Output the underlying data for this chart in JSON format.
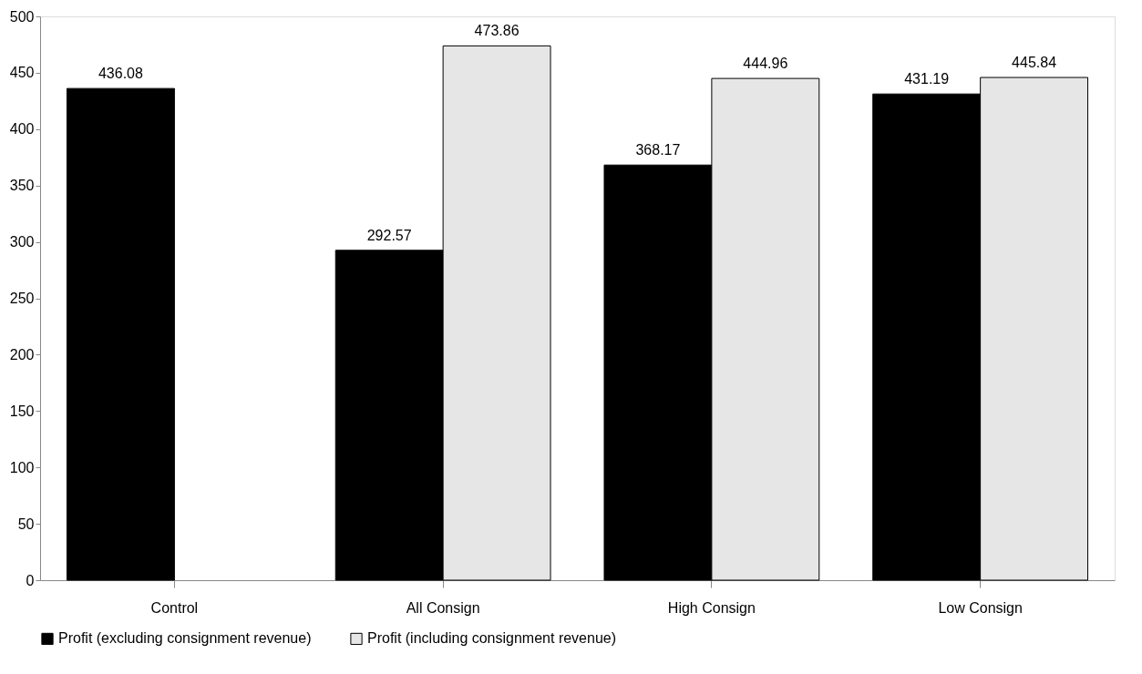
{
  "chart_data": {
    "type": "bar",
    "categories": [
      "Control",
      "All Consign",
      "High Consign",
      "Low Consign"
    ],
    "series": [
      {
        "name": "Profit (excluding consignment revenue)",
        "color": "#000000",
        "values": [
          436.08,
          292.57,
          368.17,
          431.19
        ]
      },
      {
        "name": "Profit (including consignment revenue)",
        "color": "#e6e6e6",
        "values": [
          null,
          473.86,
          444.96,
          445.84
        ]
      }
    ],
    "ylim": [
      0,
      500
    ],
    "yticks": [
      0,
      50,
      100,
      150,
      200,
      250,
      300,
      350,
      400,
      450,
      500
    ],
    "data_labels": true,
    "grid": false,
    "legend": "bottom"
  }
}
